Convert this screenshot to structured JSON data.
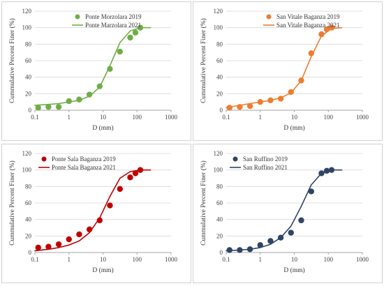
{
  "chart_data": [
    {
      "type": "scatter",
      "xlabel": "D (mm)",
      "ylabel": "Cummulative Percent Finer (%)",
      "xscale": "log",
      "xlim": [
        0.1,
        1000
      ],
      "ylim": [
        0,
        120
      ],
      "xticks": [
        "0.1",
        "1",
        "10",
        "100",
        "1000"
      ],
      "yticks": [
        "0",
        "20",
        "40",
        "60",
        "80",
        "100",
        "120"
      ],
      "grid": "horizontal",
      "legend": "top-right",
      "color": "#70ad47",
      "series": [
        {
          "name": "Ponte Morzolara 2019",
          "kind": "markers",
          "x": [
            0.125,
            0.25,
            0.5,
            1,
            2,
            4,
            8,
            16,
            31.5,
            63,
            90,
            125
          ],
          "y": [
            3,
            4,
            4,
            11,
            13,
            19,
            29,
            50,
            71,
            88,
            94,
            100
          ]
        },
        {
          "name": "Ponte Marzolara 2021",
          "kind": "line",
          "x": [
            0.1,
            0.25,
            0.5,
            1,
            2,
            4,
            8,
            16,
            31.5,
            63,
            125,
            250
          ],
          "y": [
            6,
            7,
            8,
            10,
            12,
            17,
            28,
            54,
            82,
            96,
            100,
            100
          ]
        }
      ]
    },
    {
      "type": "scatter",
      "xlabel": "D (mm)",
      "ylabel": "Cummulative Percent Finer (%)",
      "xscale": "log",
      "xlim": [
        0.1,
        1000
      ],
      "ylim": [
        0,
        120
      ],
      "xticks": [
        "0.1",
        "1",
        "10",
        "100",
        "1000"
      ],
      "yticks": [
        "0",
        "20",
        "40",
        "60",
        "80",
        "100",
        "120"
      ],
      "grid": "horizontal",
      "legend": "top-right",
      "color": "#ed7d31",
      "series": [
        {
          "name": "San Vitale Baganza 2019",
          "kind": "markers",
          "x": [
            0.125,
            0.25,
            0.5,
            1,
            2,
            4,
            8,
            16,
            31.5,
            63,
            90,
            125
          ],
          "y": [
            3,
            4,
            5,
            10,
            12,
            14,
            22,
            36,
            69,
            92,
            98,
            100
          ]
        },
        {
          "name": "San Vitale Baganza 2021",
          "kind": "line",
          "x": [
            0.1,
            0.25,
            0.5,
            1,
            2,
            4,
            8,
            16,
            31.5,
            63,
            125,
            250
          ],
          "y": [
            3,
            6,
            8,
            10,
            12,
            15,
            21,
            36,
            65,
            90,
            99,
            100
          ]
        }
      ]
    },
    {
      "type": "scatter",
      "xlabel": "D (mm)",
      "ylabel": "Cummulative Percent Finer (%)",
      "xscale": "log",
      "xlim": [
        0.1,
        1000
      ],
      "ylim": [
        0,
        120
      ],
      "xticks": [
        "0.1",
        "1",
        "10",
        "100",
        "1000"
      ],
      "yticks": [
        "0",
        "20",
        "40",
        "60",
        "80",
        "100",
        "120"
      ],
      "grid": "horizontal",
      "legend": "top-left",
      "color": "#c00000",
      "series": [
        {
          "name": "Ponte Sala Baganza 2019",
          "kind": "markers",
          "x": [
            0.125,
            0.25,
            0.5,
            1,
            2,
            4,
            8,
            16,
            31.5,
            63,
            90,
            125
          ],
          "y": [
            6,
            7,
            10,
            16,
            22,
            28,
            39,
            57,
            77,
            91,
            96,
            100
          ]
        },
        {
          "name": "Ponte Sala Baganza 2021",
          "kind": "line",
          "x": [
            0.1,
            0.25,
            0.5,
            1,
            2,
            4,
            8,
            16,
            31.5,
            63,
            125,
            250
          ],
          "y": [
            2,
            4,
            6,
            9,
            14,
            24,
            42,
            68,
            90,
            98,
            100,
            100
          ]
        }
      ]
    },
    {
      "type": "scatter",
      "xlabel": "D (mm)",
      "ylabel": "Cummulative Percent Finer (%)",
      "xscale": "log",
      "xlim": [
        0.1,
        1000
      ],
      "ylim": [
        0,
        120
      ],
      "xticks": [
        "0.1",
        "1",
        "10",
        "100",
        "1000"
      ],
      "yticks": [
        "0",
        "20",
        "40",
        "60",
        "80",
        "100",
        "120"
      ],
      "grid": "horizontal",
      "legend": "top-left",
      "color": "#2f4564",
      "series": [
        {
          "name": "San Ruffino 2019",
          "kind": "markers",
          "x": [
            0.125,
            0.25,
            0.5,
            1,
            2,
            4,
            8,
            16,
            31.5,
            63,
            90,
            125
          ],
          "y": [
            3,
            3,
            4,
            9,
            14,
            18,
            24,
            39,
            74,
            96,
            99,
            100
          ]
        },
        {
          "name": "San Ruffino 2021",
          "kind": "line",
          "x": [
            0.1,
            0.25,
            0.5,
            1,
            2,
            4,
            8,
            16,
            31.5,
            63,
            125,
            250
          ],
          "y": [
            2,
            3,
            4,
            6,
            10,
            18,
            32,
            56,
            82,
            96,
            100,
            100
          ]
        }
      ]
    }
  ]
}
